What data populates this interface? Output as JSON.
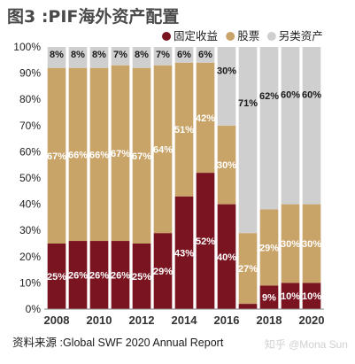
{
  "title": "图3 :PIF海外资产配置",
  "source": "资料来源 :Global SWF 2020 Annual Report",
  "watermark": "知乎 @Mona Sun",
  "chart_data": {
    "type": "bar",
    "stacked": true,
    "percent_stacked": true,
    "categories": [
      "2008",
      "2009",
      "2010",
      "2011",
      "2012",
      "2013",
      "2014",
      "2015",
      "2016",
      "2017",
      "2018",
      "2019",
      "2020"
    ],
    "x_tick_labels": [
      "2008",
      "",
      "2010",
      "",
      "2012",
      "",
      "2014",
      "",
      "2016",
      "",
      "2018",
      "",
      "2020"
    ],
    "ylim": [
      0,
      100
    ],
    "y_ticks": [
      "0%",
      "10%",
      "20%",
      "30%",
      "40%",
      "50%",
      "60%",
      "70%",
      "80%",
      "90%",
      "100%"
    ],
    "legend_position": "top-right",
    "series": [
      {
        "name": "固定收益",
        "color": "#7a1420",
        "values": [
          25,
          26,
          26,
          26,
          25,
          29,
          43,
          52,
          40,
          2,
          9,
          10,
          10
        ],
        "labels": [
          "25%",
          "26%",
          "26%",
          "26%",
          "25%",
          "29%",
          "43%",
          "52%",
          "40%",
          "2%",
          "9%",
          "10%",
          "10%"
        ]
      },
      {
        "name": "股票",
        "color": "#c9a468",
        "values": [
          67,
          66,
          66,
          67,
          67,
          64,
          51,
          42,
          30,
          27,
          29,
          30,
          30
        ],
        "labels": [
          "67%",
          "66%",
          "66%",
          "67%",
          "67%",
          "64%",
          "51%",
          "42%",
          "30%",
          "27%",
          "29%",
          "30%",
          "30%"
        ]
      },
      {
        "name": "另类资产",
        "color": "#cfcfcf",
        "values": [
          8,
          8,
          8,
          7,
          8,
          7,
          6,
          6,
          30,
          71,
          62,
          60,
          60
        ],
        "labels": [
          "8%",
          "8%",
          "8%",
          "7%",
          "8%",
          "7%",
          "6%",
          "6%",
          "30%",
          "71%",
          "62%",
          "60%",
          "60%"
        ]
      }
    ]
  }
}
